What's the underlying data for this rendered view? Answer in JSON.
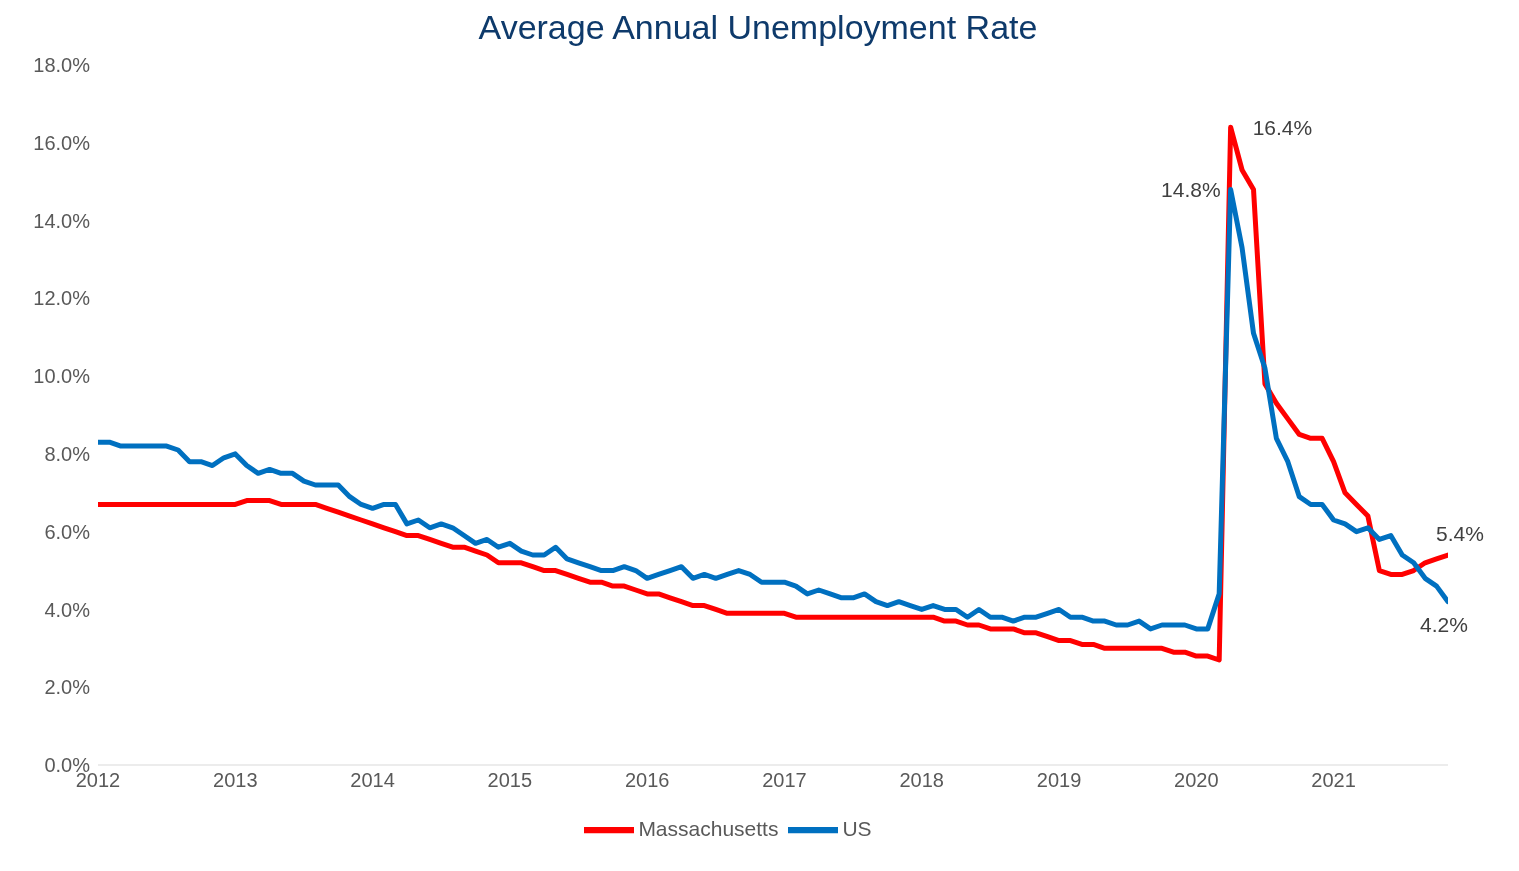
{
  "chart_data": {
    "type": "line",
    "title": "Average Annual Unemployment Rate",
    "x": [
      "2012-01",
      "2012-02",
      "2012-03",
      "2012-04",
      "2012-05",
      "2012-06",
      "2012-07",
      "2012-08",
      "2012-09",
      "2012-10",
      "2012-11",
      "2012-12",
      "2013-01",
      "2013-02",
      "2013-03",
      "2013-04",
      "2013-05",
      "2013-06",
      "2013-07",
      "2013-08",
      "2013-09",
      "2013-10",
      "2013-11",
      "2013-12",
      "2014-01",
      "2014-02",
      "2014-03",
      "2014-04",
      "2014-05",
      "2014-06",
      "2014-07",
      "2014-08",
      "2014-09",
      "2014-10",
      "2014-11",
      "2014-12",
      "2015-01",
      "2015-02",
      "2015-03",
      "2015-04",
      "2015-05",
      "2015-06",
      "2015-07",
      "2015-08",
      "2015-09",
      "2015-10",
      "2015-11",
      "2015-12",
      "2016-01",
      "2016-02",
      "2016-03",
      "2016-04",
      "2016-05",
      "2016-06",
      "2016-07",
      "2016-08",
      "2016-09",
      "2016-10",
      "2016-11",
      "2016-12",
      "2017-01",
      "2017-02",
      "2017-03",
      "2017-04",
      "2017-05",
      "2017-06",
      "2017-07",
      "2017-08",
      "2017-09",
      "2017-10",
      "2017-11",
      "2017-12",
      "2018-01",
      "2018-02",
      "2018-03",
      "2018-04",
      "2018-05",
      "2018-06",
      "2018-07",
      "2018-08",
      "2018-09",
      "2018-10",
      "2018-11",
      "2018-12",
      "2019-01",
      "2019-02",
      "2019-03",
      "2019-04",
      "2019-05",
      "2019-06",
      "2019-07",
      "2019-08",
      "2019-09",
      "2019-10",
      "2019-11",
      "2019-12",
      "2020-01",
      "2020-02",
      "2020-03",
      "2020-04",
      "2020-05",
      "2020-06",
      "2020-07",
      "2020-08",
      "2020-09",
      "2020-10",
      "2020-11",
      "2020-12",
      "2021-01",
      "2021-02",
      "2021-03",
      "2021-04",
      "2021-05",
      "2021-06",
      "2021-07",
      "2021-08",
      "2021-09",
      "2021-10",
      "2021-11"
    ],
    "xlim": [
      "2012-01",
      "2021-11"
    ],
    "xticks": [
      {
        "value": "2012-01",
        "label": "2012"
      },
      {
        "value": "2013-01",
        "label": "2013"
      },
      {
        "value": "2014-01",
        "label": "2014"
      },
      {
        "value": "2015-01",
        "label": "2015"
      },
      {
        "value": "2016-01",
        "label": "2016"
      },
      {
        "value": "2017-01",
        "label": "2017"
      },
      {
        "value": "2018-01",
        "label": "2018"
      },
      {
        "value": "2019-01",
        "label": "2019"
      },
      {
        "value": "2020-01",
        "label": "2020"
      },
      {
        "value": "2021-01",
        "label": "2021"
      }
    ],
    "ylim": [
      0,
      18
    ],
    "yticks": [
      {
        "value": 0,
        "label": "0.0%"
      },
      {
        "value": 2,
        "label": "2.0%"
      },
      {
        "value": 4,
        "label": "4.0%"
      },
      {
        "value": 6,
        "label": "6.0%"
      },
      {
        "value": 8,
        "label": "8.0%"
      },
      {
        "value": 10,
        "label": "10.0%"
      },
      {
        "value": 12,
        "label": "12.0%"
      },
      {
        "value": 14,
        "label": "14.0%"
      },
      {
        "value": 16,
        "label": "16.0%"
      },
      {
        "value": 18,
        "label": "18.0%"
      }
    ],
    "series": [
      {
        "name": "Massachusetts",
        "color": "#ff0000",
        "values": [
          6.7,
          6.7,
          6.7,
          6.7,
          6.7,
          6.7,
          6.7,
          6.7,
          6.7,
          6.7,
          6.7,
          6.7,
          6.7,
          6.8,
          6.8,
          6.8,
          6.7,
          6.7,
          6.7,
          6.7,
          6.6,
          6.5,
          6.4,
          6.3,
          6.2,
          6.1,
          6.0,
          5.9,
          5.9,
          5.8,
          5.7,
          5.6,
          5.6,
          5.5,
          5.4,
          5.2,
          5.2,
          5.2,
          5.1,
          5.0,
          5.0,
          4.9,
          4.8,
          4.7,
          4.7,
          4.6,
          4.6,
          4.5,
          4.4,
          4.4,
          4.3,
          4.2,
          4.1,
          4.1,
          4.0,
          3.9,
          3.9,
          3.9,
          3.9,
          3.9,
          3.9,
          3.8,
          3.8,
          3.8,
          3.8,
          3.8,
          3.8,
          3.8,
          3.8,
          3.8,
          3.8,
          3.8,
          3.8,
          3.8,
          3.7,
          3.7,
          3.6,
          3.6,
          3.5,
          3.5,
          3.5,
          3.4,
          3.4,
          3.3,
          3.2,
          3.2,
          3.1,
          3.1,
          3.0,
          3.0,
          3.0,
          3.0,
          3.0,
          3.0,
          2.9,
          2.9,
          2.8,
          2.8,
          2.7,
          16.4,
          15.3,
          14.8,
          9.8,
          9.3,
          8.9,
          8.5,
          8.4,
          8.4,
          7.8,
          7.0,
          6.7,
          6.4,
          5.0,
          4.9,
          4.9,
          5.0,
          5.2,
          5.3,
          5.4
        ],
        "value_labels": [
          null,
          null,
          null,
          null,
          null,
          null,
          null,
          null,
          null,
          null,
          null,
          null,
          null,
          null,
          null,
          null,
          null,
          null,
          null,
          null,
          null,
          null,
          null,
          null,
          null,
          null,
          null,
          null,
          null,
          null,
          null,
          null,
          null,
          null,
          null,
          null,
          null,
          null,
          null,
          null,
          null,
          null,
          null,
          null,
          null,
          null,
          null,
          null,
          null,
          null,
          null,
          null,
          null,
          null,
          null,
          null,
          null,
          null,
          null,
          null,
          null,
          null,
          null,
          null,
          null,
          null,
          null,
          null,
          null,
          null,
          null,
          null,
          null,
          null,
          null,
          null,
          null,
          null,
          null,
          null,
          null,
          null,
          null,
          null,
          null,
          null,
          null,
          null,
          null,
          null,
          null,
          null,
          null,
          null,
          null,
          null,
          null,
          null,
          null,
          "16.4%",
          null,
          null,
          null,
          null,
          null,
          null,
          null,
          null,
          null,
          null,
          null,
          null,
          null,
          null,
          null,
          null,
          null,
          null,
          "5.4%"
        ]
      },
      {
        "name": "US",
        "color": "#0070c0",
        "values": [
          8.3,
          8.3,
          8.2,
          8.2,
          8.2,
          8.2,
          8.2,
          8.1,
          7.8,
          7.8,
          7.7,
          7.9,
          8.0,
          7.7,
          7.5,
          7.6,
          7.5,
          7.5,
          7.3,
          7.2,
          7.2,
          7.2,
          6.9,
          6.7,
          6.6,
          6.7,
          6.7,
          6.2,
          6.3,
          6.1,
          6.2,
          6.1,
          5.9,
          5.7,
          5.8,
          5.6,
          5.7,
          5.5,
          5.4,
          5.4,
          5.6,
          5.3,
          5.2,
          5.1,
          5.0,
          5.0,
          5.1,
          5.0,
          4.8,
          4.9,
          5.0,
          5.1,
          4.8,
          4.9,
          4.8,
          4.9,
          5.0,
          4.9,
          4.7,
          4.7,
          4.7,
          4.6,
          4.4,
          4.5,
          4.4,
          4.3,
          4.3,
          4.4,
          4.2,
          4.1,
          4.2,
          4.1,
          4.0,
          4.1,
          4.0,
          4.0,
          3.8,
          4.0,
          3.8,
          3.8,
          3.7,
          3.8,
          3.8,
          3.9,
          4.0,
          3.8,
          3.8,
          3.7,
          3.7,
          3.6,
          3.6,
          3.7,
          3.5,
          3.6,
          3.6,
          3.6,
          3.5,
          3.5,
          4.4,
          14.8,
          13.3,
          11.1,
          10.2,
          8.4,
          7.8,
          6.9,
          6.7,
          6.7,
          6.3,
          6.2,
          6.0,
          6.1,
          5.8,
          5.9,
          5.4,
          5.2,
          4.8,
          4.6,
          4.2
        ],
        "value_labels": [
          null,
          null,
          null,
          null,
          null,
          null,
          null,
          null,
          null,
          null,
          null,
          null,
          null,
          null,
          null,
          null,
          null,
          null,
          null,
          null,
          null,
          null,
          null,
          null,
          null,
          null,
          null,
          null,
          null,
          null,
          null,
          null,
          null,
          null,
          null,
          null,
          null,
          null,
          null,
          null,
          null,
          null,
          null,
          null,
          null,
          null,
          null,
          null,
          null,
          null,
          null,
          null,
          null,
          null,
          null,
          null,
          null,
          null,
          null,
          null,
          null,
          null,
          null,
          null,
          null,
          null,
          null,
          null,
          null,
          null,
          null,
          null,
          null,
          null,
          null,
          null,
          null,
          null,
          null,
          null,
          null,
          null,
          null,
          null,
          null,
          null,
          null,
          null,
          null,
          null,
          null,
          null,
          null,
          null,
          null,
          null,
          null,
          null,
          null,
          "14.8%",
          null,
          null,
          null,
          null,
          null,
          null,
          null,
          null,
          null,
          null,
          null,
          null,
          null,
          null,
          null,
          null,
          null,
          null,
          "4.2%"
        ]
      }
    ],
    "grid": false,
    "legend": "bottom",
    "marker": "none",
    "line_style": "solid"
  }
}
